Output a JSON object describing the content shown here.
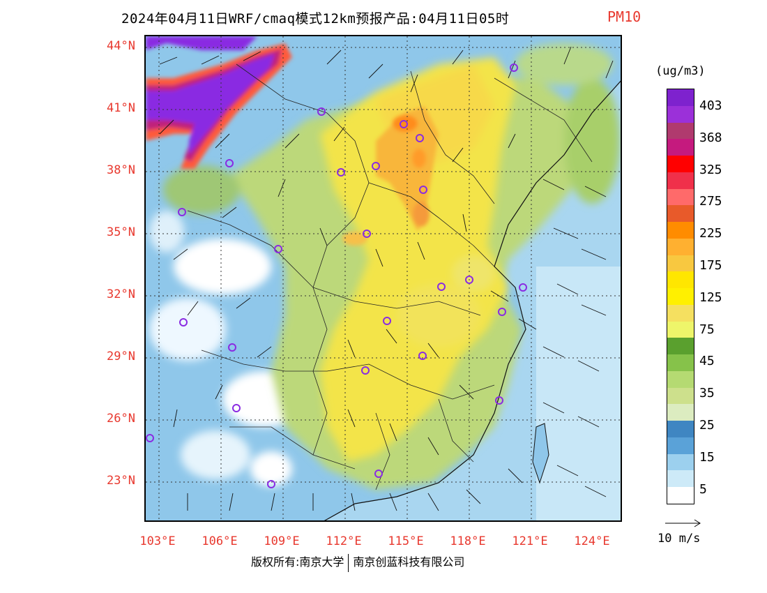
{
  "title": {
    "main": "2024年04月11日WRF/cmaq模式12km预报产品:04月11日05时",
    "variable": "PM10"
  },
  "axes": {
    "lat_labels": [
      "44°N",
      "41°N",
      "38°N",
      "35°N",
      "32°N",
      "29°N",
      "26°N",
      "23°N"
    ],
    "lon_labels": [
      "103°E",
      "106°E",
      "109°E",
      "112°E",
      "115°E",
      "118°E",
      "121°E",
      "124°E"
    ]
  },
  "legend": {
    "unit": "(ug/m3)",
    "labels": [
      "403",
      "368",
      "325",
      "275",
      "225",
      "175",
      "125",
      "75",
      "45",
      "35",
      "25",
      "15",
      "5"
    ],
    "colors": [
      "#7e22ce",
      "#9b30d9",
      "#b03a6e",
      "#c51a7e",
      "#ff0000",
      "#f0304a",
      "#ff6a6a",
      "#e85a2a",
      "#ff8c00",
      "#ffb030",
      "#f8c840",
      "#ffe600",
      "#fff000",
      "#f5e060",
      "#eef56a",
      "#5aa02e",
      "#86c24a",
      "#b5da72",
      "#cde08c",
      "#dcecc0",
      "#3f86c2",
      "#5aa2d8",
      "#9cd0ee",
      "#cdeaf8",
      "#ffffff"
    ],
    "wind_ref_label": "10 m/s"
  },
  "copyright": {
    "left": "版权所有:南京大学",
    "right": "南京创蓝科技有限公司"
  },
  "map_colors": {
    "sea": "#a9d6f0",
    "land_base": "#8fc7ea",
    "yellow_plume": "#f5e24a",
    "orange_core": "#f8b63a",
    "purple_dust": "#8a2be2"
  }
}
